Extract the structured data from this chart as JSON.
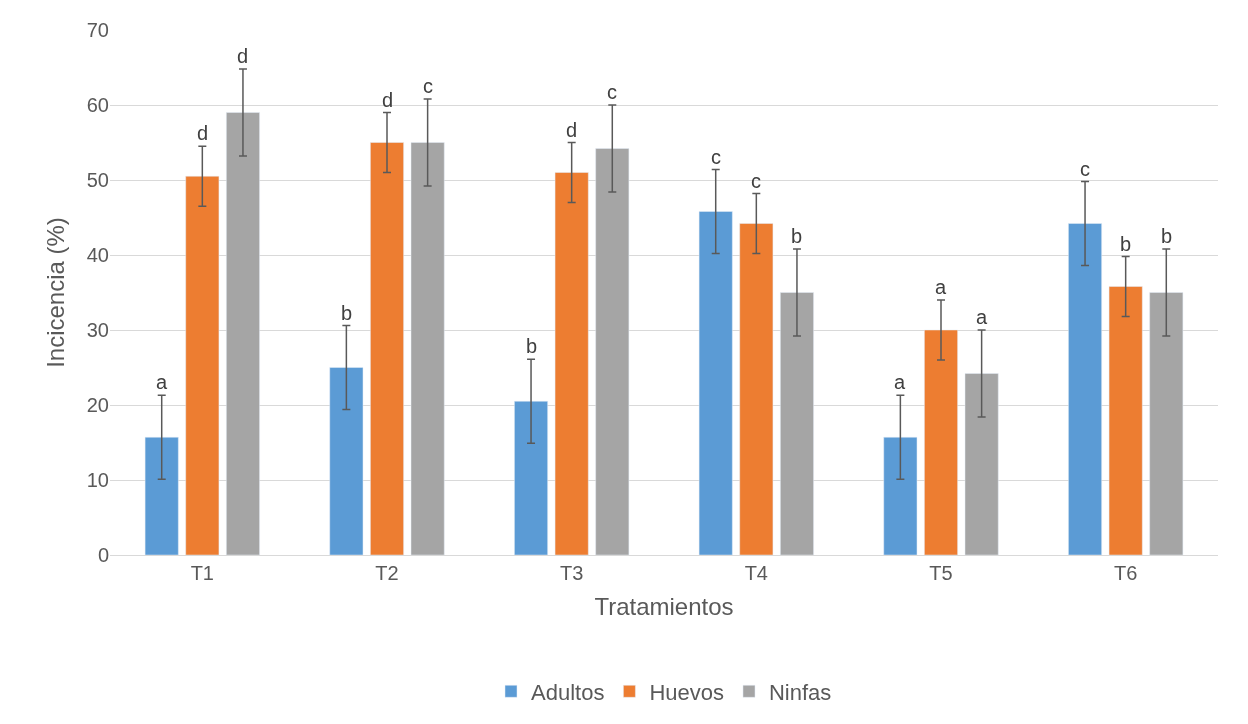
{
  "chart_data": {
    "type": "bar",
    "xlabel": "Tratamientos",
    "ylabel": "Incicencia (%)",
    "categories": [
      "T1",
      "T2",
      "T3",
      "T4",
      "T5",
      "T6"
    ],
    "series": [
      {
        "name": "Adultos",
        "color": "#5b9bd5",
        "values": [
          15.7,
          25,
          20.5,
          45.8,
          15.7,
          44.2
        ],
        "errors": [
          5.6,
          5.6,
          5.6,
          5.6,
          5.6,
          5.6
        ],
        "value_labels": [
          "a",
          "b",
          "b",
          "c",
          "a",
          "c"
        ]
      },
      {
        "name": "Huevos",
        "color": "#ed7d31",
        "values": [
          50.5,
          55,
          51,
          44.2,
          30,
          35.8
        ],
        "errors": [
          4,
          4,
          4,
          4,
          4,
          4
        ],
        "value_labels": [
          "d",
          "d",
          "d",
          "c",
          "a",
          "b"
        ]
      },
      {
        "name": "Ninfas",
        "color": "#a5a5a5",
        "values": [
          59,
          55,
          54.2,
          35,
          24.2,
          35
        ],
        "errors": [
          5.8,
          5.8,
          5.8,
          5.8,
          5.8,
          5.8
        ],
        "value_labels": [
          "d",
          "c",
          "c",
          "b",
          "a",
          "b"
        ]
      }
    ],
    "ylim": [
      0,
      70
    ],
    "yticks": [
      0,
      10,
      20,
      30,
      40,
      50,
      60,
      70
    ],
    "grid": "y",
    "legend": "bottom"
  }
}
